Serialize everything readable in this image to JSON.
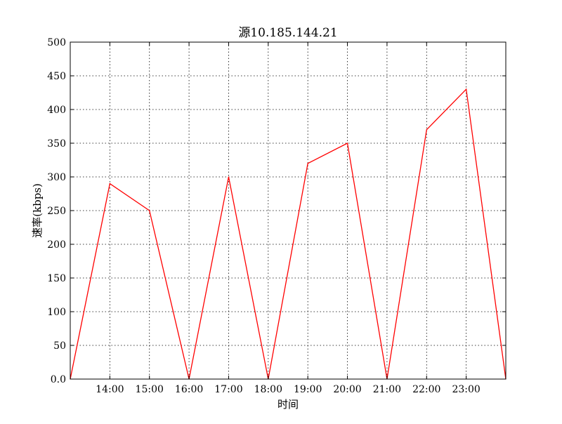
{
  "chart_data": {
    "type": "line",
    "title": "源10.185.144.21",
    "xlabel": "时间",
    "ylabel": "速率(kbps)",
    "x_tick_labels": [
      "14:00",
      "15:00",
      "16:00",
      "17:00",
      "18:00",
      "19:00",
      "20:00",
      "21:00",
      "22:00",
      "23:00"
    ],
    "y_tick_labels": [
      "0.0",
      "50",
      "100",
      "150",
      "200",
      "250",
      "300",
      "350",
      "400",
      "450",
      "500"
    ],
    "ylim": [
      0,
      500
    ],
    "grid": true,
    "series": [
      {
        "color": "#ff0000",
        "points": [
          {
            "x": "13:00",
            "y": 0
          },
          {
            "x": "14:00",
            "y": 290
          },
          {
            "x": "15:00",
            "y": 250
          },
          {
            "x": "16:00",
            "y": 0
          },
          {
            "x": "17:00",
            "y": 300
          },
          {
            "x": "18:00",
            "y": 0
          },
          {
            "x": "19:00",
            "y": 320
          },
          {
            "x": "20:00",
            "y": 350
          },
          {
            "x": "21:00",
            "y": 0
          },
          {
            "x": "22:00",
            "y": 370
          },
          {
            "x": "23:00",
            "y": 430
          },
          {
            "x": "24:00",
            "y": 0
          }
        ]
      }
    ]
  }
}
